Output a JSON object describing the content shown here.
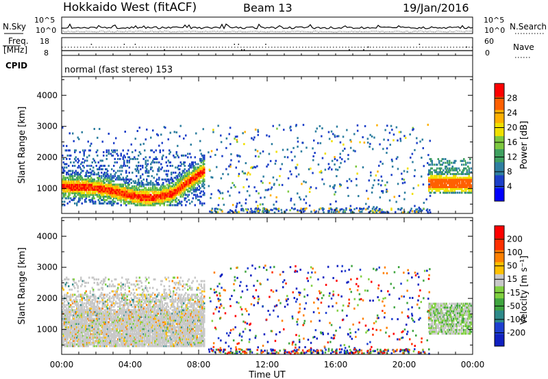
{
  "header": {
    "title": "Hokkaido West (fitACF)",
    "beam": "Beam 13",
    "date": "19/Jan/2016"
  },
  "status_panels": {
    "nsky_label": "N.Sky",
    "nsearch_label": "N.Search",
    "noise_ticks": [
      "10^5",
      "10^0"
    ],
    "freq_label_line1": "Freq.",
    "freq_label_line2": "[MHz]",
    "freq_ticks": [
      "18",
      "8"
    ],
    "nave_label": "Nave",
    "nave_ticks": [
      "60",
      "0"
    ],
    "cpid_label": "CPID",
    "cpid_value": "normal (fast stereo) 153"
  },
  "chart_data": [
    {
      "type": "heatmap",
      "name": "power",
      "ylabel": "Slant Range [km]",
      "yticks": [
        "1000",
        "2000",
        "3000",
        "4000"
      ],
      "ylim": [
        200,
        4600
      ],
      "xlim": [
        0,
        24
      ],
      "colorbar_label": "Power [dB]",
      "colorbar_ticks": [
        "4",
        "8",
        "12",
        "16",
        "20",
        "24",
        "28"
      ],
      "colors": [
        "#0000ff",
        "#1c3fc8",
        "#2f7fa0",
        "#3fa060",
        "#7dc840",
        "#f0e000",
        "#ffb000",
        "#ff6000",
        "#ff0000"
      ]
    },
    {
      "type": "heatmap",
      "name": "velocity",
      "ylabel": "Slant Range [km]",
      "yticks": [
        "1000",
        "2000",
        "3000",
        "4000"
      ],
      "ylim": [
        200,
        4600
      ],
      "xlim": [
        0,
        24
      ],
      "colorbar_label": "Velocity [m s⁻¹]",
      "colorbar_ticks": [
        "200",
        "100",
        "50",
        "15",
        "-15",
        "-50",
        "-100",
        "-200"
      ],
      "colors": [
        "#1020c0",
        "#1e3fd0",
        "#2e8a8a",
        "#3fa53f",
        "#80d040",
        "#c8c8c8",
        "#ffc000",
        "#ff8000",
        "#ff3000",
        "#ff0000"
      ]
    }
  ],
  "xaxis": {
    "label": "Time UT",
    "ticks": [
      "00:00",
      "04:00",
      "08:00",
      "12:00",
      "16:00",
      "20:00",
      "00:00"
    ]
  }
}
